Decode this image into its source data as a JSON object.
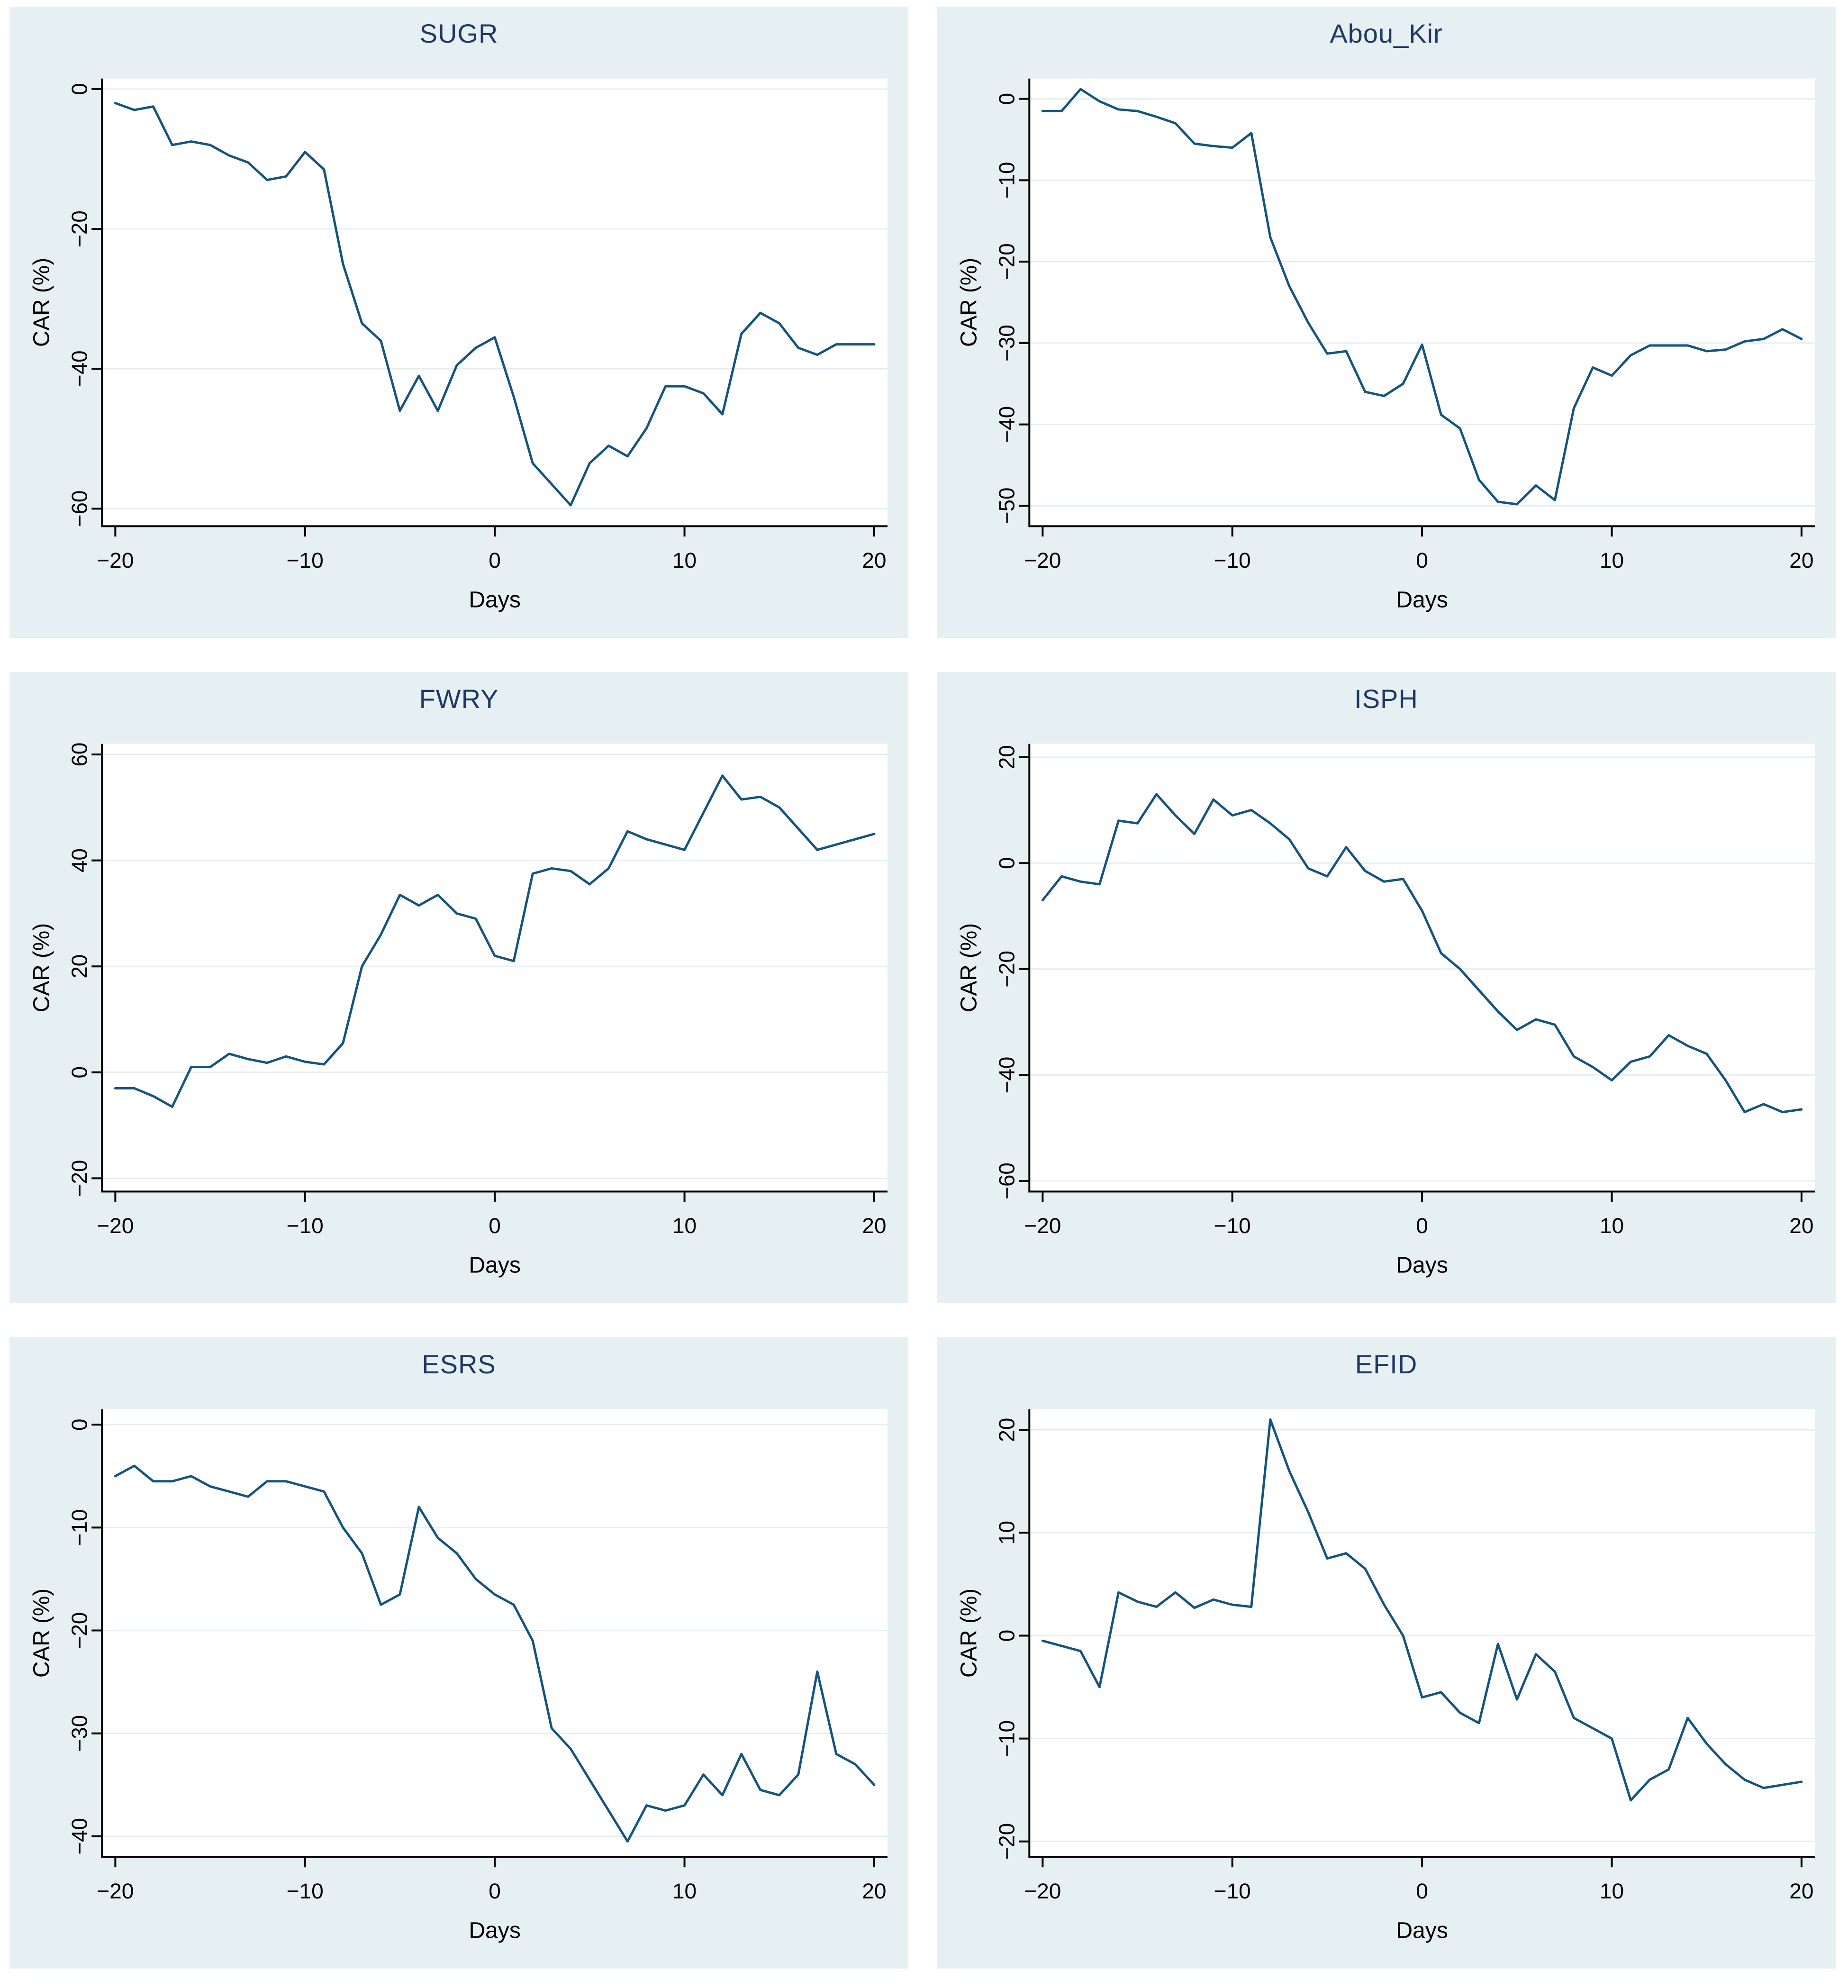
{
  "style": {
    "page_bg": "#ffffff",
    "panel_bg": "#e6f0f2",
    "plot_bg": "#ffffff",
    "grid_color": "#e4eff2",
    "line_color": "#14547e",
    "axis_color": "#000000",
    "tick_color": "#000000",
    "title_color": "#1f3864"
  },
  "chart_data": [
    {
      "type": "line",
      "title": "SUGR",
      "xlabel": "Days",
      "ylabel": "CAR (%)",
      "legend": "none",
      "grid": true,
      "xticks": [
        -20,
        -10,
        0,
        10,
        20
      ],
      "yticks": [
        0,
        -20,
        -40,
        -60
      ],
      "xlim": [
        -20.7,
        20.7
      ],
      "ylim": [
        -62.5,
        1.5
      ],
      "x": [
        -20,
        -19,
        -18,
        -17,
        -16,
        -15,
        -14,
        -13,
        -12,
        -11,
        -10,
        -9,
        -8,
        -7,
        -6,
        -5,
        -4,
        -3,
        -2,
        -1,
        0,
        1,
        2,
        3,
        4,
        5,
        6,
        7,
        8,
        9,
        10,
        11,
        12,
        13,
        14,
        15,
        16,
        17,
        18,
        19,
        20
      ],
      "values": [
        -2,
        -3,
        -2.5,
        -8,
        -7.5,
        -8,
        -9.5,
        -10.5,
        -13,
        -12.5,
        -9,
        -11.5,
        -25,
        -33.5,
        -36,
        -46,
        -41,
        -46,
        -39.5,
        -37,
        -35.5,
        -44,
        -53.5,
        -56.5,
        -59.5,
        -53.5,
        -51,
        -52.5,
        -48.5,
        -42.5,
        -42.5,
        -43.5,
        -46.5,
        -35,
        -32,
        -33.5,
        -37,
        -38,
        -36.5,
        -36.5,
        -36.5
      ]
    },
    {
      "type": "line",
      "title": "Abou_Kir",
      "xlabel": "Days",
      "ylabel": "CAR (%)",
      "legend": "none",
      "grid": true,
      "xticks": [
        -20,
        -10,
        0,
        10,
        20
      ],
      "yticks": [
        0,
        -10,
        -20,
        -30,
        -40,
        -50
      ],
      "xlim": [
        -20.7,
        20.7
      ],
      "ylim": [
        -52.5,
        2.5
      ],
      "x": [
        -20,
        -19,
        -18,
        -17,
        -16,
        -15,
        -14,
        -13,
        -12,
        -11,
        -10,
        -9,
        -8,
        -7,
        -6,
        -5,
        -4,
        -3,
        -2,
        -1,
        0,
        1,
        2,
        3,
        4,
        5,
        6,
        7,
        8,
        9,
        10,
        11,
        12,
        13,
        14,
        15,
        16,
        17,
        18,
        19,
        20
      ],
      "values": [
        -1.5,
        -1.5,
        1.2,
        -0.3,
        -1.3,
        -1.5,
        -2.2,
        -3,
        -5.5,
        -5.8,
        -6,
        -4.2,
        -17,
        -23,
        -27.5,
        -31.3,
        -31,
        -36,
        -36.5,
        -35,
        -30.2,
        -38.8,
        -40.5,
        -46.8,
        -49.5,
        -49.8,
        -47.5,
        -49.3,
        -38,
        -33,
        -34,
        -31.5,
        -30.3,
        -30.3,
        -30.3,
        -31,
        -30.8,
        -29.8,
        -29.5,
        -28.3,
        -29.5
      ]
    },
    {
      "type": "line",
      "title": "FWRY",
      "xlabel": "Days",
      "ylabel": "CAR (%)",
      "legend": "none",
      "grid": true,
      "xticks": [
        -20,
        -10,
        0,
        10,
        20
      ],
      "yticks": [
        60,
        40,
        20,
        0,
        -20
      ],
      "xlim": [
        -20.7,
        20.7
      ],
      "ylim": [
        -22.5,
        62
      ],
      "x": [
        -20,
        -19,
        -18,
        -17,
        -16,
        -15,
        -14,
        -13,
        -12,
        -11,
        -10,
        -9,
        -8,
        -7,
        -6,
        -5,
        -4,
        -3,
        -2,
        -1,
        0,
        1,
        2,
        3,
        4,
        5,
        6,
        7,
        8,
        9,
        10,
        11,
        12,
        13,
        14,
        15,
        16,
        17,
        18,
        19,
        20
      ],
      "values": [
        -3,
        -3,
        -4.5,
        -6.5,
        1,
        1,
        3.5,
        2.5,
        1.8,
        3,
        2,
        1.5,
        5.5,
        20,
        26,
        33.5,
        31.5,
        33.5,
        30,
        29,
        22,
        21,
        37.5,
        38.5,
        38,
        35.5,
        38.5,
        45.5,
        44,
        43,
        42,
        49,
        56,
        51.5,
        52,
        50,
        46,
        42,
        43,
        44,
        45
      ]
    },
    {
      "type": "line",
      "title": "ISPH",
      "xlabel": "Days",
      "ylabel": "CAR (%)",
      "legend": "none",
      "grid": true,
      "xticks": [
        -20,
        -10,
        0,
        10,
        20
      ],
      "yticks": [
        20,
        0,
        -20,
        -40,
        -60
      ],
      "xlim": [
        -20.7,
        20.7
      ],
      "ylim": [
        -62,
        22.5
      ],
      "x": [
        -20,
        -19,
        -18,
        -17,
        -16,
        -15,
        -14,
        -13,
        -12,
        -11,
        -10,
        -9,
        -8,
        -7,
        -6,
        -5,
        -4,
        -3,
        -2,
        -1,
        0,
        1,
        2,
        3,
        4,
        5,
        6,
        7,
        8,
        9,
        10,
        11,
        12,
        13,
        14,
        15,
        16,
        17,
        18,
        19,
        20
      ],
      "values": [
        -7,
        -2.5,
        -3.5,
        -4,
        8,
        7.5,
        13,
        9,
        5.5,
        12,
        9,
        10,
        7.5,
        4.5,
        -1,
        -2.5,
        3,
        -1.5,
        -3.5,
        -3,
        -9,
        -17,
        -20,
        -24,
        -28,
        -31.5,
        -29.5,
        -30.5,
        -36.5,
        -38.5,
        -41,
        -37.5,
        -36.5,
        -32.5,
        -34.5,
        -36,
        -41,
        -47,
        -45.5,
        -47,
        -46.5
      ]
    },
    {
      "type": "line",
      "title": "ESRS",
      "xlabel": "Days",
      "ylabel": "CAR (%)",
      "legend": "none",
      "grid": true,
      "xticks": [
        -20,
        -10,
        0,
        10,
        20
      ],
      "yticks": [
        0,
        -10,
        -20,
        -30,
        -40
      ],
      "xlim": [
        -20.7,
        20.7
      ],
      "ylim": [
        -42,
        1.5
      ],
      "x": [
        -20,
        -19,
        -18,
        -17,
        -16,
        -15,
        -14,
        -13,
        -12,
        -11,
        -10,
        -9,
        -8,
        -7,
        -6,
        -5,
        -4,
        -3,
        -2,
        -1,
        0,
        1,
        2,
        3,
        4,
        5,
        6,
        7,
        8,
        9,
        10,
        11,
        12,
        13,
        14,
        15,
        16,
        17,
        18,
        19,
        20
      ],
      "values": [
        -5,
        -4,
        -5.5,
        -5.5,
        -5,
        -6,
        -6.5,
        -7,
        -5.5,
        -5.5,
        -6,
        -6.5,
        -10,
        -12.5,
        -17.5,
        -16.5,
        -8,
        -11,
        -12.5,
        -15,
        -16.5,
        -17.5,
        -21,
        -29.5,
        -31.5,
        -34.5,
        -37.5,
        -40.5,
        -37,
        -37.5,
        -37,
        -34,
        -36,
        -32,
        -35.5,
        -36,
        -34,
        -24,
        -32,
        -33,
        -35
      ]
    },
    {
      "type": "line",
      "title": "EFID",
      "xlabel": "Days",
      "ylabel": "CAR (%)",
      "legend": "none",
      "grid": true,
      "xticks": [
        -20,
        -10,
        0,
        10,
        20
      ],
      "yticks": [
        20,
        10,
        0,
        -10,
        -20
      ],
      "xlim": [
        -20.7,
        20.7
      ],
      "ylim": [
        -21.5,
        22
      ],
      "x": [
        -20,
        -19,
        -18,
        -17,
        -16,
        -15,
        -14,
        -13,
        -12,
        -11,
        -10,
        -9,
        -8,
        -7,
        -6,
        -5,
        -4,
        -3,
        -2,
        -1,
        0,
        1,
        2,
        3,
        4,
        5,
        6,
        7,
        8,
        9,
        10,
        11,
        12,
        13,
        14,
        15,
        16,
        17,
        18,
        19,
        20
      ],
      "values": [
        -0.5,
        -1,
        -1.5,
        -5,
        4.2,
        3.3,
        2.8,
        4.2,
        2.7,
        3.5,
        3,
        2.8,
        21,
        16,
        12,
        7.5,
        8,
        6.5,
        3,
        0,
        -6,
        -5.5,
        -7.5,
        -8.5,
        -0.8,
        -6.2,
        -1.8,
        -3.5,
        -8,
        -9,
        -10,
        -16,
        -14,
        -13,
        -8,
        -10.5,
        -12.5,
        -14,
        -14.8,
        -14.5,
        -14.2
      ]
    }
  ]
}
